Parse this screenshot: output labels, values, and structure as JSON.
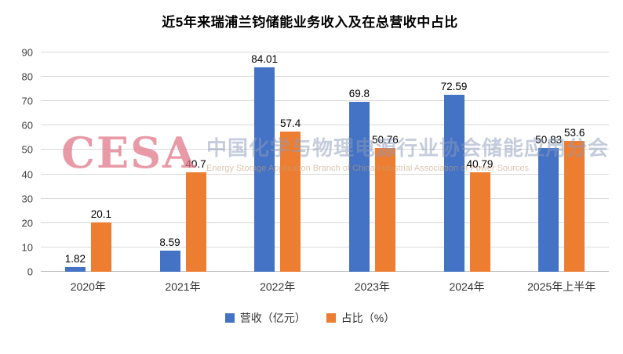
{
  "chart_data": {
    "type": "bar",
    "title": "近5年来瑞浦兰钧储能业务收入及在总营收中占比",
    "categories": [
      "2020年",
      "2021年",
      "2022年",
      "2023年",
      "2024年",
      "2025年上半年"
    ],
    "series": [
      {
        "name": "营收（亿元）",
        "color": "#4472C4",
        "values": [
          1.82,
          8.59,
          84.01,
          69.8,
          72.59,
          50.83
        ]
      },
      {
        "name": "占比（%）",
        "color": "#ED7D31",
        "values": [
          20.1,
          40.7,
          57.4,
          50.76,
          40.79,
          53.6
        ]
      }
    ],
    "ylim": [
      0,
      90
    ],
    "yticks": [
      0,
      10,
      20,
      30,
      40,
      50,
      60,
      70,
      80,
      90
    ],
    "grid": true,
    "legend_position": "bottom"
  },
  "watermark": {
    "logo": "CESA",
    "line1": "中国化学与物理电源行业协会储能应用分会",
    "line2": "Energy Storage Application Branch of China Industrial Association of Power Sources"
  }
}
